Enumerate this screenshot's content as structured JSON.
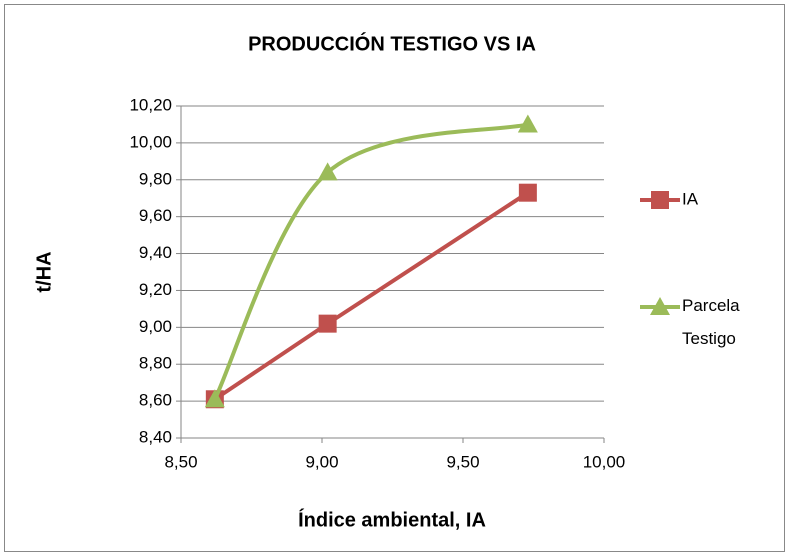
{
  "chart_data": {
    "type": "line",
    "title": "PRODUCCIÓN TESTIGO VS IA",
    "xlabel": "Índice ambiental, IA",
    "ylabel": "t/HA",
    "x": [
      8.62,
      9.02,
      9.73
    ],
    "series": [
      {
        "name": "IA",
        "color": "#c0504d",
        "marker": "square",
        "smooth": false,
        "values": [
          8.61,
          9.02,
          9.73
        ]
      },
      {
        "name": "Parcela Testigo",
        "color": "#9bbb59",
        "marker": "triangle",
        "smooth": true,
        "values": [
          8.61,
          9.84,
          10.1
        ]
      }
    ],
    "xlim": [
      8.5,
      10
    ],
    "xticks": [
      {
        "value": 8.5,
        "label": "8,50"
      },
      {
        "value": 9,
        "label": "9,00"
      },
      {
        "value": 9.5,
        "label": "9,50"
      },
      {
        "value": 10,
        "label": "10,00"
      }
    ],
    "ylim": [
      8.4,
      10.2
    ],
    "yticks": [
      {
        "value": 8.4,
        "label": "8,40"
      },
      {
        "value": 8.6,
        "label": "8,60"
      },
      {
        "value": 8.8,
        "label": "8,80"
      },
      {
        "value": 9.0,
        "label": "9,00"
      },
      {
        "value": 9.2,
        "label": "9,20"
      },
      {
        "value": 9.4,
        "label": "9,40"
      },
      {
        "value": 9.6,
        "label": "9,60"
      },
      {
        "value": 9.8,
        "label": "9,80"
      },
      {
        "value": 10.0,
        "label": "10,00"
      },
      {
        "value": 10.2,
        "label": "10,20"
      }
    ],
    "grid": true,
    "legend": "right"
  }
}
